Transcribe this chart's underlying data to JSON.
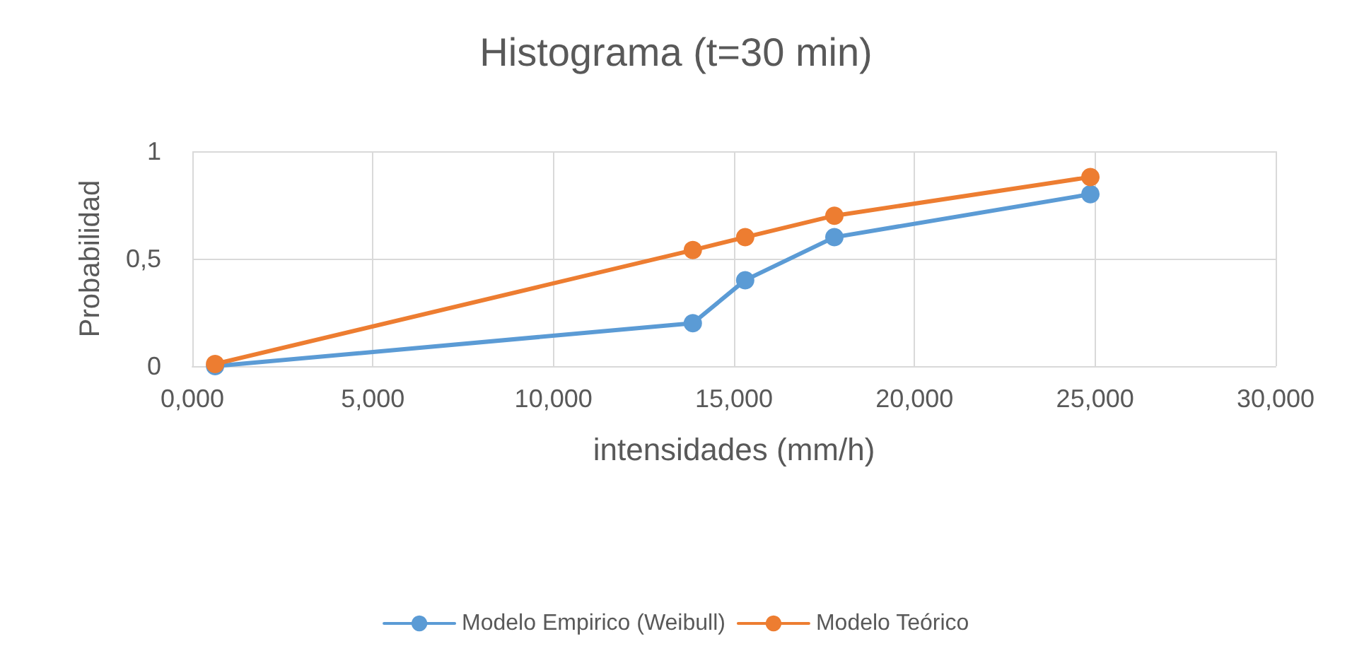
{
  "chart_data": {
    "type": "line",
    "title": "Histograma (t=30 min)",
    "xlabel": "intensidades (mm/h)",
    "ylabel": "Probabilidad",
    "xlim": [
      0,
      30
    ],
    "xticks": [
      {
        "value": 0,
        "label": "0,000"
      },
      {
        "value": 5,
        "label": "5,000"
      },
      {
        "value": 10,
        "label": "10,000"
      },
      {
        "value": 15,
        "label": "15,000"
      },
      {
        "value": 20,
        "label": "20,000"
      },
      {
        "value": 25,
        "label": "25,000"
      },
      {
        "value": 30,
        "label": "30,000"
      }
    ],
    "ylim": [
      0,
      1
    ],
    "yticks": [
      0,
      {
        "value": 0.5,
        "label": "0,5"
      },
      1
    ],
    "grid": true,
    "legend": "bottom",
    "marker": "circle",
    "line_style": "solid",
    "series": [
      {
        "name": "Modelo Empirico (Weibull)",
        "color": "#5b9bd5",
        "x": [
          0.63,
          13.86,
          15.31,
          17.78,
          24.87
        ],
        "values": [
          0,
          0.2,
          0.4,
          0.6,
          0.8
        ]
      },
      {
        "name": "Modelo Teórico",
        "color": "#ed7d31",
        "x": [
          0.63,
          13.86,
          15.31,
          17.78,
          24.87
        ],
        "values": [
          0.01,
          0.54,
          0.6,
          0.7,
          0.88
        ]
      }
    ]
  }
}
